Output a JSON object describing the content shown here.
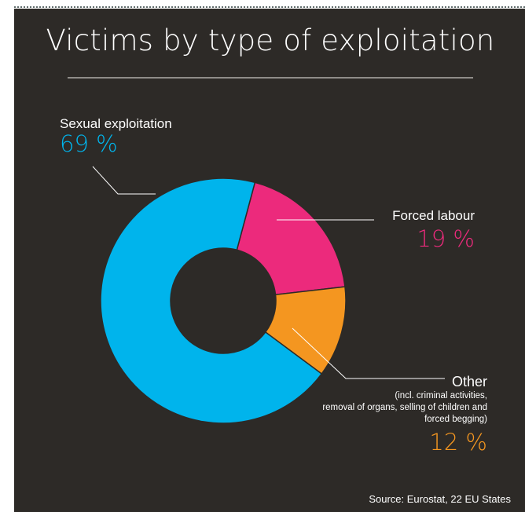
{
  "chart_data": {
    "type": "pie",
    "donut": true,
    "title": "Victims by type of exploitation",
    "slices": [
      {
        "name": "Sexual exploitation",
        "value": 69,
        "value_label": "69 %",
        "color": "#00b4ec"
      },
      {
        "name": "Forced labour",
        "value": 19,
        "value_label": "19 %",
        "color": "#ec2a7c"
      },
      {
        "name": "Other",
        "value": 12,
        "value_label": "12 %",
        "color": "#f49620",
        "note_lines": [
          "(incl. criminal activities,",
          "removal of organs,  selling of children and",
          "forced begging)"
        ]
      }
    ],
    "source": "Source: Eurostat, 22 EU States"
  },
  "colors": {
    "background": "#2d2a27",
    "text": "#ffffff",
    "rule": "#8f8c88",
    "slice_border": "#2d2a27"
  }
}
